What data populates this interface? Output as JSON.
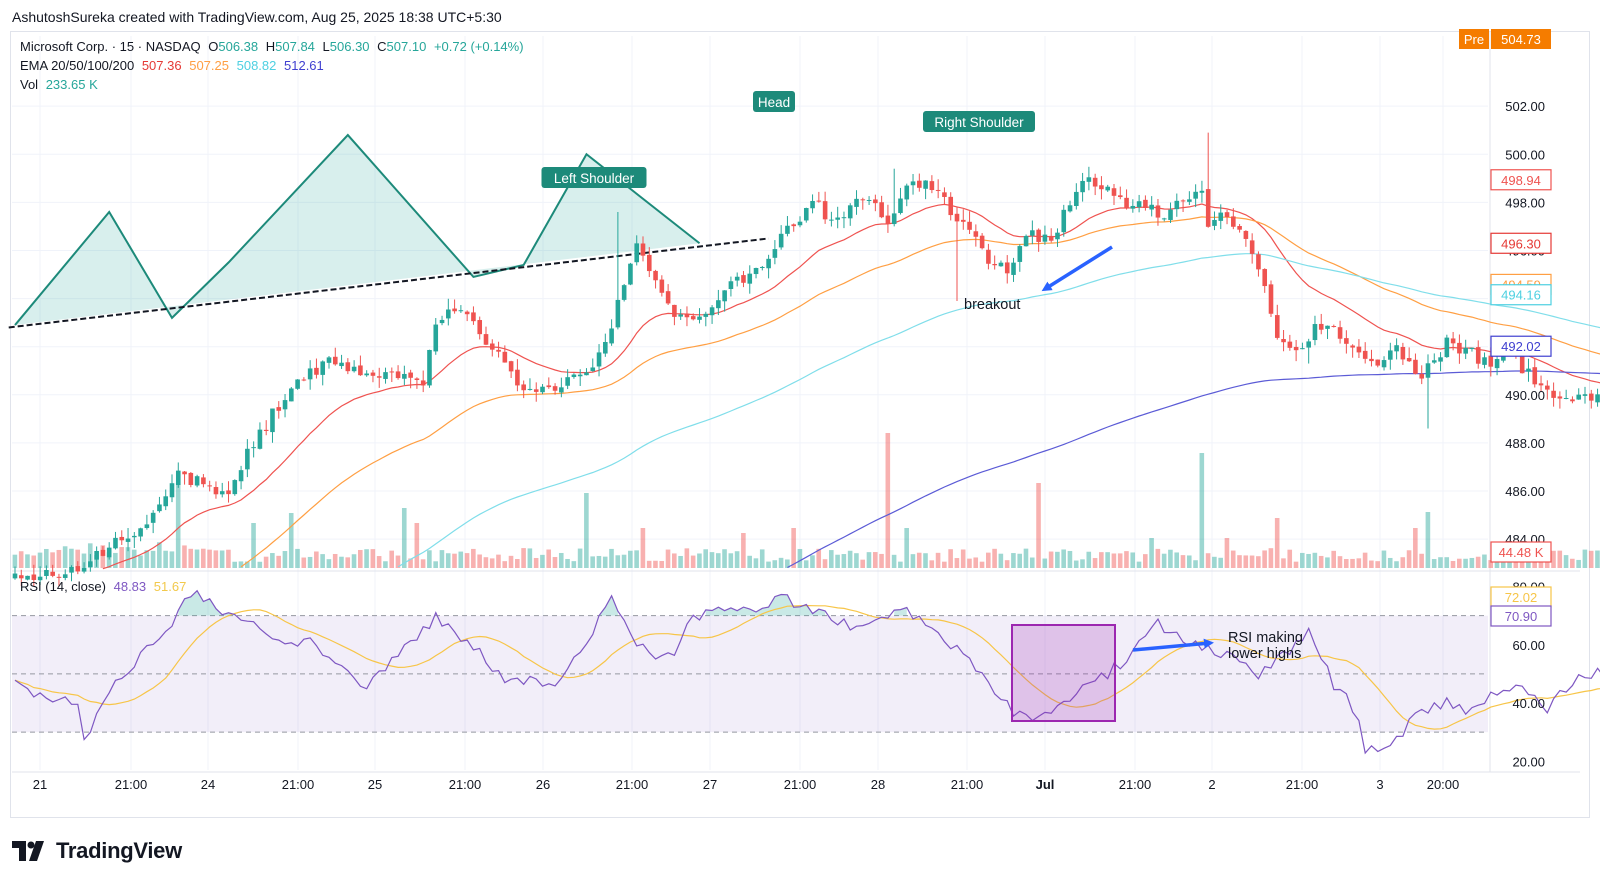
{
  "attribution": "AshutoshSureka created with TradingView.com, Aug 25, 2025 18:38 UTC+5:30",
  "brand": "TradingView",
  "colors": {
    "up": "#26a69a",
    "down": "#ef5350",
    "ema20": "#ef5350",
    "ema50": "#ff9f43",
    "ema100": "#80deea",
    "ema200": "#5b5bd6",
    "rsi": "#7e57c2",
    "rsi_ma": "#f7c548",
    "pattern_fill": "#26a69a",
    "annot": "#1d8a7a",
    "arrow": "#2962ff"
  },
  "legend": {
    "symbol": "Microsoft Corp. · 15 · NASDAQ",
    "o_label": "O",
    "o_val": "506.38",
    "h_label": "H",
    "h_val": "507.84",
    "l_label": "L",
    "l_val": "506.30",
    "c_label": "C",
    "c_val": "507.10",
    "change": "+0.72 (+0.14%)",
    "ema_label": "EMA 20/50/100/200",
    "ema_vals": [
      "507.36",
      "507.25",
      "508.82",
      "512.61"
    ],
    "vol_label": "Vol",
    "vol_val": "233.65 K",
    "rsi_label": "RSI (14, close)",
    "rsi_val": "48.83",
    "rsi_ma_val": "51.67"
  },
  "price_axis": {
    "ticks": [
      "502.00",
      "500.00",
      "498.00",
      "496.00",
      "494.00",
      "492.00",
      "490.00",
      "488.00",
      "486.00",
      "484.00"
    ],
    "tick_values": [
      502,
      500,
      498,
      496,
      494,
      492,
      490,
      488,
      486,
      484
    ],
    "pre_label": "Pre",
    "pre_price": "504.73",
    "badges": [
      {
        "value": "498.94",
        "price": 498.94,
        "color": "#ef5350",
        "fill": false
      },
      {
        "value": "496.30",
        "price": 496.3,
        "color": "#e53935",
        "fill": false
      },
      {
        "value": "494.59",
        "price": 494.59,
        "color": "#ff9f43",
        "fill": false
      },
      {
        "value": "494.16",
        "price": 494.16,
        "color": "#4dd0e1",
        "fill": false
      },
      {
        "value": "492.02",
        "price": 492.02,
        "color": "#3f3fd0",
        "fill": false
      }
    ],
    "vol_badge": "44.48 K"
  },
  "rsi_axis": {
    "ticks": [
      "80.00",
      "60.00",
      "40.00",
      "20.00"
    ],
    "tick_values": [
      80,
      60,
      40,
      20
    ],
    "badges": [
      {
        "value": "72.02",
        "rsi": 72.02,
        "color": "#f7c548"
      },
      {
        "value": "70.90",
        "rsi": 70.9,
        "color": "#7e57c2"
      }
    ]
  },
  "time_axis": [
    "21",
    "21:00",
    "24",
    "21:00",
    "25",
    "21:00",
    "26",
    "21:00",
    "27",
    "21:00",
    "28",
    "21:00",
    "Jul",
    "21:00",
    "2",
    "21:00",
    "3",
    "20:00"
  ],
  "time_axis_bold": [
    false,
    false,
    false,
    false,
    false,
    false,
    false,
    false,
    false,
    false,
    false,
    false,
    true,
    false,
    false,
    false,
    false,
    false
  ],
  "annotations": {
    "left_shoulder": "Left Shoulder",
    "head": "Head",
    "right_shoulder": "Right Shoulder",
    "breakout": "breakout",
    "rsi_note_line1": "RSI making",
    "rsi_note_line2": "lower highs"
  },
  "chart_data": {
    "type": "candlestick",
    "symbol": "MSFT",
    "interval": "15",
    "price_range": [
      482.8,
      505.0
    ],
    "rsi_range": [
      17,
      85
    ],
    "rsi_levels": [
      70,
      50,
      30
    ],
    "grid": true,
    "pattern": {
      "name": "head and shoulders",
      "points": [
        [
          0,
          492.9
        ],
        [
          15,
          497.6
        ],
        [
          25,
          493.2
        ],
        [
          34,
          495.5
        ],
        [
          53,
          500.8
        ],
        [
          73,
          494.9
        ],
        [
          81,
          495.4
        ],
        [
          91,
          500.0
        ],
        [
          109,
          496.3
        ]
      ],
      "neckline": [
        [
          -1,
          492.8
        ],
        [
          120,
          496.5
        ]
      ]
    },
    "series": [
      {
        "name": "EMA 20",
        "values": []
      },
      {
        "name": "EMA 50",
        "values": []
      },
      {
        "name": "EMA 100",
        "values": []
      },
      {
        "name": "EMA 200",
        "values": []
      }
    ]
  }
}
